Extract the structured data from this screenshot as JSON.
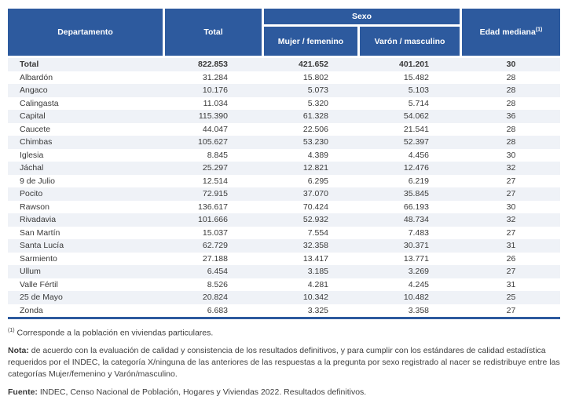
{
  "colors": {
    "header_bg": "#2d5a9e",
    "header_text": "#ffffff",
    "row_alt_bg": "#eff2f7",
    "table_bottom_border": "#2d5a9e",
    "body_text": "#3a3a3a"
  },
  "table": {
    "header": {
      "departamento": "Departamento",
      "total": "Total",
      "sexo": "Sexo",
      "mujer": "Mujer / femenino",
      "varon": "Varón / masculino",
      "edad": "Edad mediana",
      "edad_sup": "(1)"
    },
    "rows": [
      {
        "departamento": "Total",
        "total": "822.853",
        "mujer": "421.652",
        "varon": "401.201",
        "edad": "30",
        "bold": true
      },
      {
        "departamento": "Albardón",
        "total": "31.284",
        "mujer": "15.802",
        "varon": "15.482",
        "edad": "28",
        "bold": false
      },
      {
        "departamento": "Angaco",
        "total": "10.176",
        "mujer": "5.073",
        "varon": "5.103",
        "edad": "28",
        "bold": false
      },
      {
        "departamento": "Calingasta",
        "total": "11.034",
        "mujer": "5.320",
        "varon": "5.714",
        "edad": "28",
        "bold": false
      },
      {
        "departamento": "Capital",
        "total": "115.390",
        "mujer": "61.328",
        "varon": "54.062",
        "edad": "36",
        "bold": false
      },
      {
        "departamento": "Caucete",
        "total": "44.047",
        "mujer": "22.506",
        "varon": "21.541",
        "edad": "28",
        "bold": false
      },
      {
        "departamento": "Chimbas",
        "total": "105.627",
        "mujer": "53.230",
        "varon": "52.397",
        "edad": "28",
        "bold": false
      },
      {
        "departamento": "Iglesia",
        "total": "8.845",
        "mujer": "4.389",
        "varon": "4.456",
        "edad": "30",
        "bold": false
      },
      {
        "departamento": "Jáchal",
        "total": "25.297",
        "mujer": "12.821",
        "varon": "12.476",
        "edad": "32",
        "bold": false
      },
      {
        "departamento": "9 de Julio",
        "total": "12.514",
        "mujer": "6.295",
        "varon": "6.219",
        "edad": "27",
        "bold": false
      },
      {
        "departamento": "Pocito",
        "total": "72.915",
        "mujer": "37.070",
        "varon": "35.845",
        "edad": "27",
        "bold": false
      },
      {
        "departamento": "Rawson",
        "total": "136.617",
        "mujer": "70.424",
        "varon": "66.193",
        "edad": "30",
        "bold": false
      },
      {
        "departamento": "Rivadavia",
        "total": "101.666",
        "mujer": "52.932",
        "varon": "48.734",
        "edad": "32",
        "bold": false
      },
      {
        "departamento": "San Martín",
        "total": "15.037",
        "mujer": "7.554",
        "varon": "7.483",
        "edad": "27",
        "bold": false
      },
      {
        "departamento": "Santa Lucía",
        "total": "62.729",
        "mujer": "32.358",
        "varon": "30.371",
        "edad": "31",
        "bold": false
      },
      {
        "departamento": "Sarmiento",
        "total": "27.188",
        "mujer": "13.417",
        "varon": "13.771",
        "edad": "26",
        "bold": false
      },
      {
        "departamento": "Ullum",
        "total": "6.454",
        "mujer": "3.185",
        "varon": "3.269",
        "edad": "27",
        "bold": false
      },
      {
        "departamento": "Valle Fértil",
        "total": "8.526",
        "mujer": "4.281",
        "varon": "4.245",
        "edad": "31",
        "bold": false
      },
      {
        "departamento": "25 de Mayo",
        "total": "20.824",
        "mujer": "10.342",
        "varon": "10.482",
        "edad": "25",
        "bold": false
      },
      {
        "departamento": "Zonda",
        "total": "6.683",
        "mujer": "3.325",
        "varon": "3.358",
        "edad": "27",
        "bold": false
      }
    ]
  },
  "notes": {
    "footnote_marker": "(1)",
    "footnote_text": "Corresponde a la población en viviendas particulares.",
    "nota_label": "Nota:",
    "nota_text": "de acuerdo con la evaluación de calidad y consistencia de los resultados definitivos, y para cumplir con los estándares de calidad estadística requeridos por el INDEC, la categoría X/ninguna de las anteriores de las respuestas a la pregunta por sexo registrado al nacer se redistribuye entre las categorías Mujer/femenino y Varón/masculino.",
    "fuente_label": "Fuente:",
    "fuente_text": "INDEC, Censo Nacional de Población, Hogares y Viviendas 2022. Resultados definitivos."
  }
}
